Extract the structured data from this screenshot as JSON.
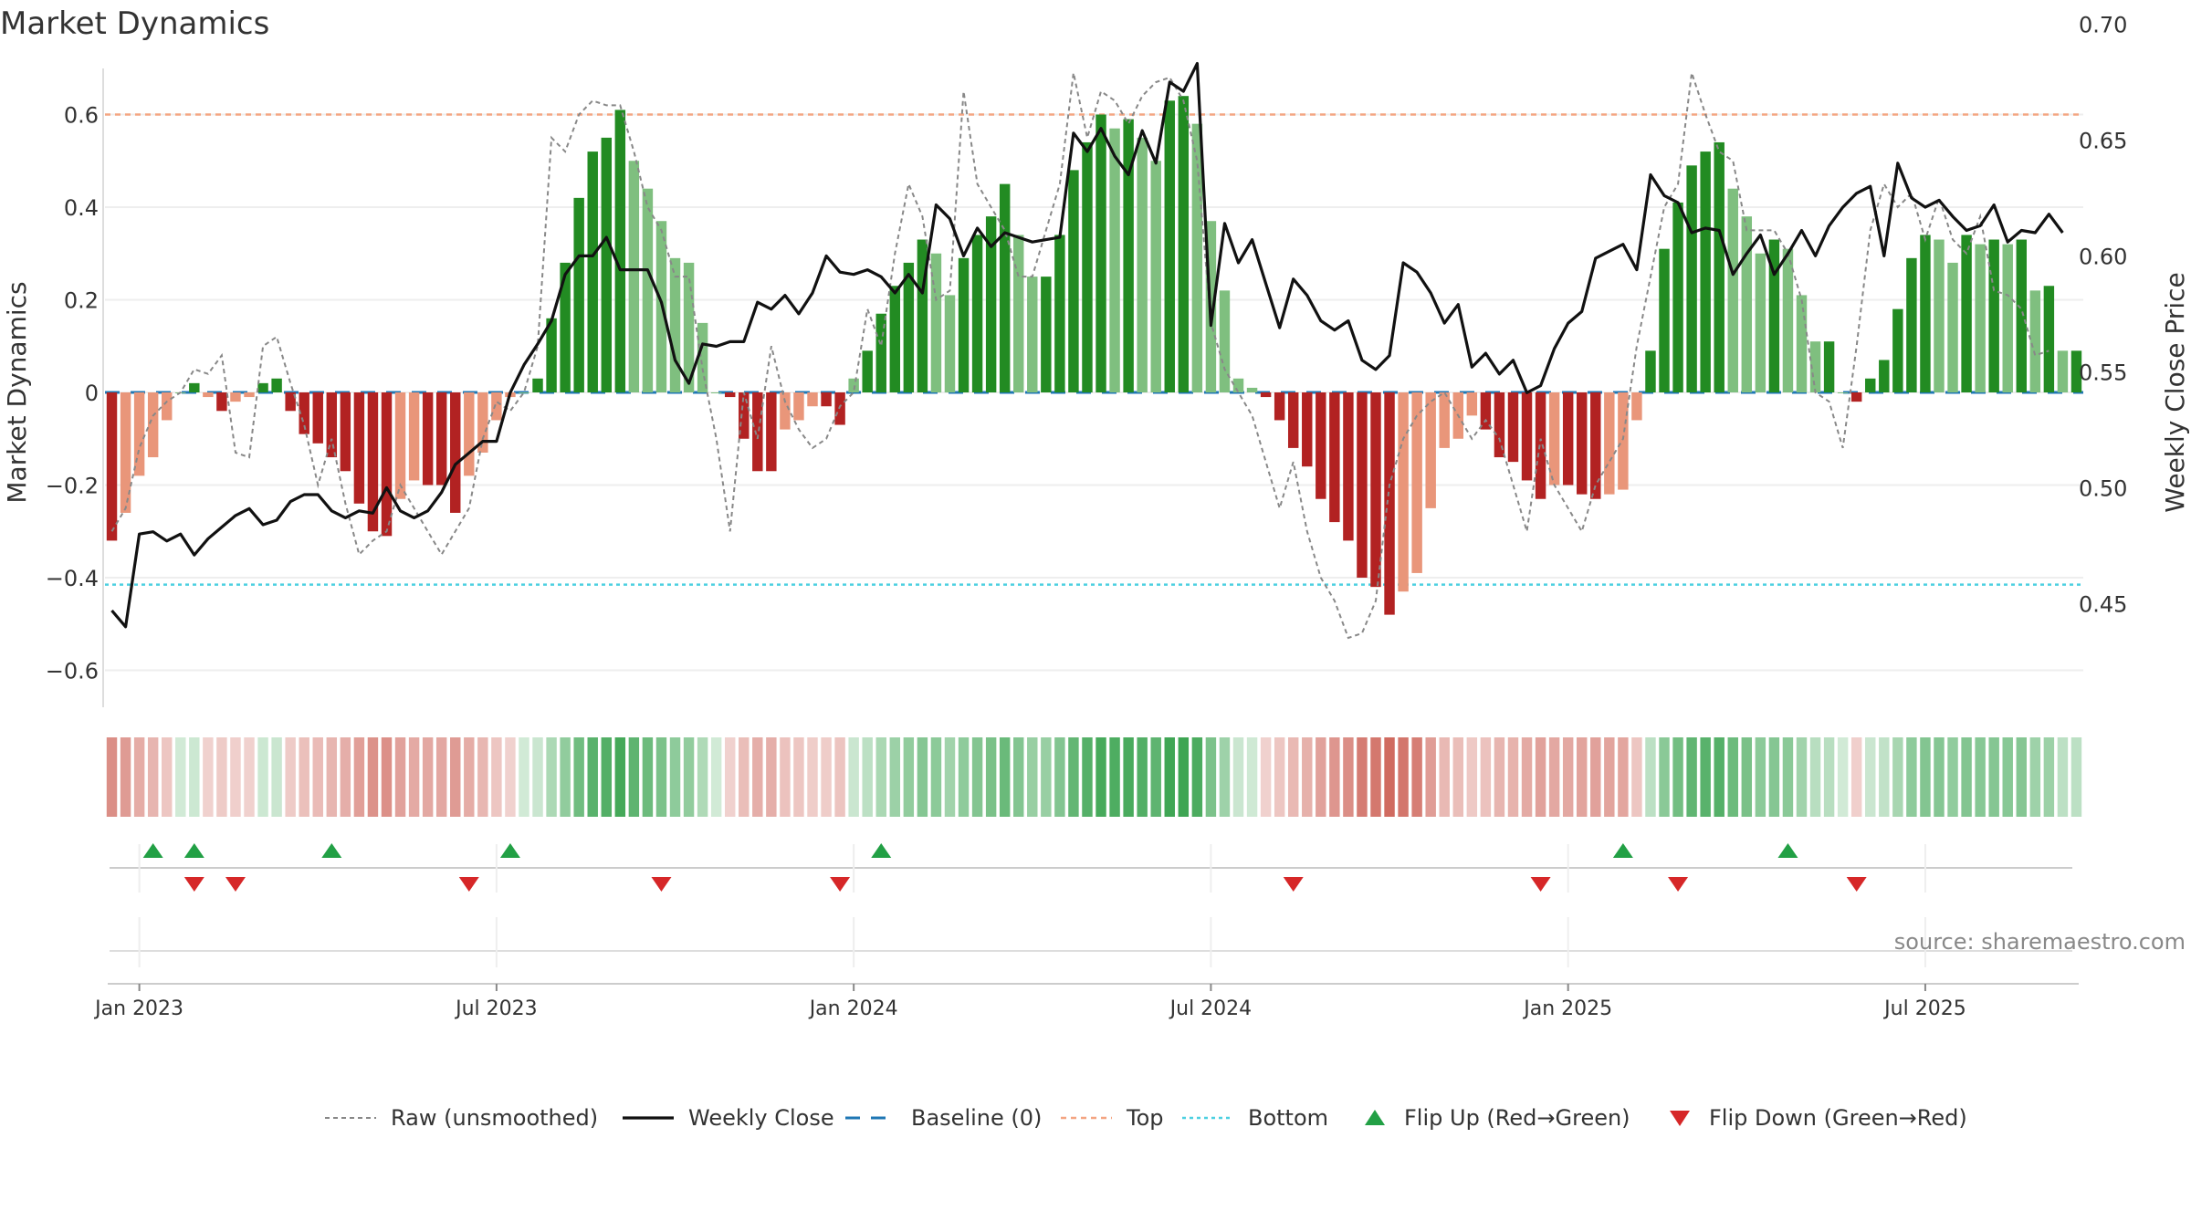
{
  "chart_data": {
    "type": "bar",
    "title": "Market Dynamics",
    "ylabel_left": "Market Dynamics",
    "ylabel_right": "Weekly Close Price",
    "ylim_left": [
      -0.68,
      0.7
    ],
    "ylim_right": [
      0.43,
      0.7
    ],
    "yticks_left": [
      "−0.6",
      "−0.4",
      "−0.2",
      "0",
      "0.2",
      "0.4",
      "0.6"
    ],
    "yticks_left_values": [
      -0.6,
      -0.4,
      -0.2,
      0,
      0.2,
      0.4,
      0.6
    ],
    "yticks_right": [
      "0.45",
      "0.50",
      "0.55",
      "0.60",
      "0.65",
      "0.70"
    ],
    "yticks_right_values": [
      0.45,
      0.5,
      0.55,
      0.6,
      0.65,
      0.7
    ],
    "xticks": [
      "Jan 2023",
      "Jul 2023",
      "Jan 2024",
      "Jul 2024",
      "Jan 2025",
      "Jul 2025"
    ],
    "xtick_weeks": [
      2,
      28,
      54,
      80,
      106,
      132
    ],
    "top_level": 0.6,
    "bottom_level": -0.415,
    "baseline": 0,
    "date_range": [
      "2022-12-19",
      "2025-09-08"
    ],
    "weekly_frequency": "W",
    "dynamics": [
      -0.32,
      -0.26,
      -0.18,
      -0.14,
      -0.06,
      0.0,
      0.02,
      -0.01,
      -0.04,
      -0.02,
      -0.01,
      0.02,
      0.03,
      -0.04,
      -0.09,
      -0.11,
      -0.14,
      -0.17,
      -0.24,
      -0.3,
      -0.31,
      -0.23,
      -0.19,
      -0.2,
      -0.2,
      -0.26,
      -0.18,
      -0.13,
      -0.06,
      -0.01,
      0.0,
      0.03,
      0.16,
      0.28,
      0.42,
      0.52,
      0.55,
      0.61,
      0.5,
      0.44,
      0.37,
      0.29,
      0.28,
      0.15,
      0.0,
      -0.01,
      -0.1,
      -0.17,
      -0.17,
      -0.08,
      -0.06,
      -0.03,
      -0.03,
      -0.07,
      0.03,
      0.09,
      0.17,
      0.23,
      0.28,
      0.33,
      0.3,
      0.21,
      0.29,
      0.34,
      0.38,
      0.45,
      0.34,
      0.25,
      0.25,
      0.34,
      0.48,
      0.54,
      0.6,
      0.57,
      0.59,
      0.55,
      0.5,
      0.63,
      0.64,
      0.58,
      0.37,
      0.22,
      0.03,
      0.01,
      -0.01,
      -0.06,
      -0.12,
      -0.16,
      -0.23,
      -0.28,
      -0.32,
      -0.4,
      -0.42,
      -0.48,
      -0.43,
      -0.39,
      -0.25,
      -0.12,
      -0.1,
      -0.05,
      -0.08,
      -0.14,
      -0.15,
      -0.19,
      -0.23,
      -0.2,
      -0.2,
      -0.22,
      -0.23,
      -0.22,
      -0.21,
      -0.06,
      0.09,
      0.31,
      0.41,
      0.49,
      0.52,
      0.54,
      0.44,
      0.38,
      0.3,
      0.33,
      0.31,
      0.21,
      0.11,
      0.11,
      0.0,
      -0.02,
      0.03,
      0.07,
      0.18,
      0.29,
      0.34,
      0.33,
      0.28,
      0.34,
      0.32,
      0.33,
      0.32,
      0.33,
      0.22,
      0.23,
      0.09,
      0.09
    ],
    "raw": [
      -0.3,
      -0.25,
      -0.12,
      -0.05,
      -0.02,
      0.0,
      0.05,
      0.04,
      0.08,
      -0.13,
      -0.14,
      0.1,
      0.12,
      0.02,
      -0.07,
      -0.2,
      -0.1,
      -0.24,
      -0.35,
      -0.32,
      -0.3,
      -0.2,
      -0.25,
      -0.3,
      -0.35,
      -0.3,
      -0.25,
      -0.1,
      -0.02,
      -0.04,
      0.0,
      0.1,
      0.55,
      0.52,
      0.6,
      0.63,
      0.62,
      0.62,
      0.52,
      0.4,
      0.35,
      0.25,
      0.25,
      0.05,
      -0.1,
      -0.3,
      0.0,
      -0.1,
      0.1,
      -0.02,
      -0.08,
      -0.12,
      -0.1,
      -0.03,
      0.0,
      0.18,
      0.1,
      0.3,
      0.45,
      0.38,
      0.2,
      0.22,
      0.65,
      0.45,
      0.4,
      0.35,
      0.25,
      0.25,
      0.35,
      0.45,
      0.69,
      0.55,
      0.65,
      0.63,
      0.58,
      0.64,
      0.67,
      0.68,
      0.63,
      0.5,
      0.15,
      0.05,
      0.0,
      -0.05,
      -0.15,
      -0.25,
      -0.15,
      -0.3,
      -0.4,
      -0.45,
      -0.53,
      -0.52,
      -0.45,
      -0.2,
      -0.1,
      -0.05,
      -0.02,
      0.0,
      -0.05,
      -0.1,
      -0.06,
      -0.1,
      -0.2,
      -0.3,
      -0.1,
      -0.2,
      -0.25,
      -0.3,
      -0.2,
      -0.15,
      -0.1,
      0.1,
      0.25,
      0.4,
      0.45,
      0.69,
      0.6,
      0.52,
      0.5,
      0.35,
      0.35,
      0.35,
      0.3,
      0.2,
      0.0,
      -0.02,
      -0.12,
      0.1,
      0.35,
      0.45,
      0.4,
      0.43,
      0.33,
      0.42,
      0.33,
      0.3,
      0.38,
      0.22,
      0.21,
      0.18,
      0.08,
      0.09
    ],
    "weekly_close": [
      0.447,
      0.44,
      0.48,
      0.481,
      0.477,
      0.48,
      0.471,
      0.478,
      0.483,
      0.488,
      0.491,
      0.484,
      0.486,
      0.494,
      0.497,
      0.497,
      0.49,
      0.487,
      0.49,
      0.489,
      0.5,
      0.49,
      0.487,
      0.49,
      0.498,
      0.51,
      0.515,
      0.52,
      0.52,
      0.541,
      0.553,
      0.562,
      0.572,
      0.592,
      0.6,
      0.6,
      0.608,
      0.594,
      0.594,
      0.594,
      0.58,
      0.555,
      0.545,
      0.562,
      0.561,
      0.563,
      0.563,
      0.58,
      0.577,
      0.583,
      0.575,
      0.584,
      0.6,
      0.593,
      0.592,
      0.594,
      0.591,
      0.584,
      0.592,
      0.584,
      0.622,
      0.616,
      0.6,
      0.612,
      0.604,
      0.61,
      0.608,
      0.606,
      0.607,
      0.608,
      0.653,
      0.645,
      0.655,
      0.643,
      0.635,
      0.654,
      0.64,
      0.675,
      0.671,
      0.683,
      0.57,
      0.614,
      0.597,
      0.607,
      0.588,
      0.569,
      0.59,
      0.583,
      0.572,
      0.568,
      0.572,
      0.555,
      0.551,
      0.557,
      0.597,
      0.593,
      0.584,
      0.571,
      0.579,
      0.552,
      0.558,
      0.549,
      0.555,
      0.541,
      0.544,
      0.56,
      0.571,
      0.576,
      0.599,
      0.602,
      0.605,
      0.594,
      0.635,
      0.626,
      0.623,
      0.61,
      0.612,
      0.611,
      0.592,
      0.601,
      0.609,
      0.592,
      0.601,
      0.611,
      0.6,
      0.613,
      0.621,
      0.627,
      0.63,
      0.6,
      0.64,
      0.625,
      0.621,
      0.624,
      0.617,
      0.611,
      0.613,
      0.622,
      0.606,
      0.611,
      0.61,
      0.618,
      0.61
    ],
    "flip_up_weeks": [
      3,
      6,
      16,
      29,
      56,
      110,
      122
    ],
    "flip_down_weeks": [
      6,
      9,
      26,
      40,
      53,
      86,
      104,
      114,
      127
    ],
    "legend": [
      "Raw (unsmoothed)",
      "Weekly Close",
      "Baseline (0)",
      "Top",
      "Bottom",
      "Flip Up (Red→Green)",
      "Flip Down (Green→Red)"
    ],
    "legend_placement": "bottom-center",
    "colors": {
      "pos_strong": "#228b22",
      "pos_light": "#7fbf7f",
      "neg_strong": "#b22222",
      "neg_light": "#e9967a",
      "raw": "#888888",
      "close": "#111111",
      "baseline": "#1f77b4",
      "top": "#f4a582",
      "bottom": "#4dd0e1",
      "flip_up": "#22a045",
      "flip_down": "#d62728"
    }
  },
  "footer": {
    "source": "source: sharemaestro.com"
  }
}
